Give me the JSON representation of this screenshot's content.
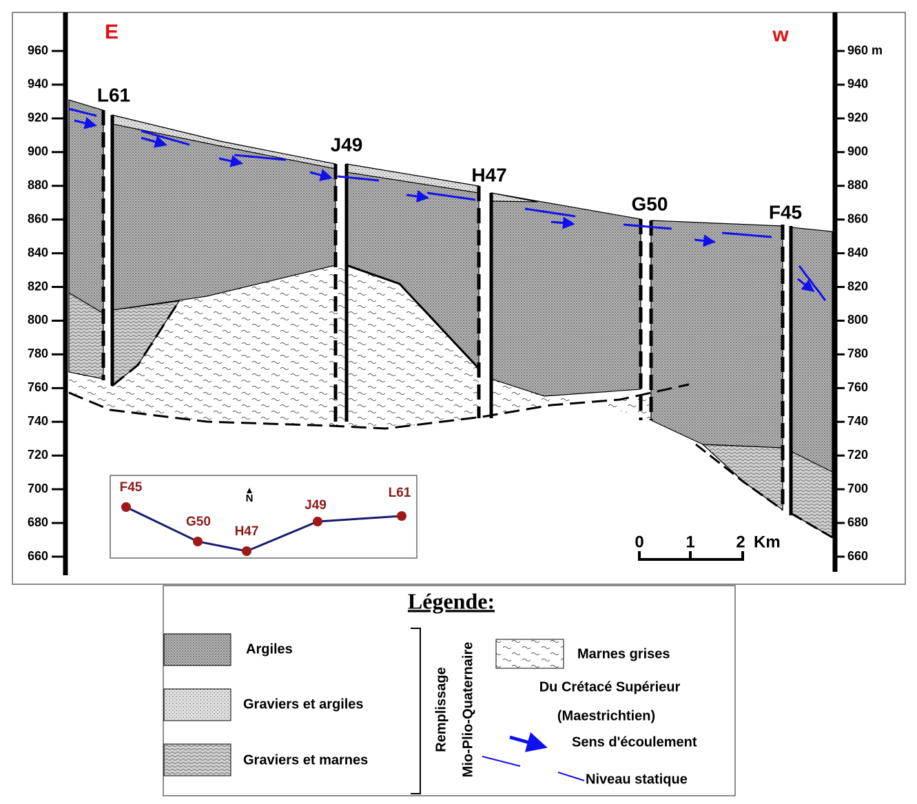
{
  "orientation": {
    "left": "E",
    "right": "w"
  },
  "left_axis": {
    "ticks": [
      960,
      940,
      920,
      900,
      880,
      860,
      840,
      820,
      800,
      780,
      760,
      740,
      720,
      700,
      680,
      660
    ]
  },
  "right_axis": {
    "ticks": [
      {
        "value": 960,
        "label": "960 m"
      },
      940,
      920,
      900,
      880,
      860,
      840,
      820,
      800,
      780,
      760,
      740,
      720,
      700,
      680,
      660
    ]
  },
  "wells": [
    "L61",
    "J49",
    "H47",
    "G50",
    "F45"
  ],
  "inset": {
    "north": "N",
    "wells": [
      "F45",
      "G50",
      "H47",
      "J49",
      "L61"
    ]
  },
  "scale": {
    "ticks": [
      0,
      1,
      2
    ],
    "unit": "Km"
  },
  "legend": {
    "title": "Légende:",
    "items": [
      "Argiles",
      "Graviers et argiles",
      "Graviers et marnes"
    ],
    "group": [
      "Remplissage",
      "Mio-Plio-Quaternaire"
    ],
    "marnes": [
      "Marnes grises",
      "Du Crétacé Supérieur",
      "(Maestrichtien)"
    ],
    "flow": "Sens d'écoulement",
    "level": "Niveau statique"
  }
}
